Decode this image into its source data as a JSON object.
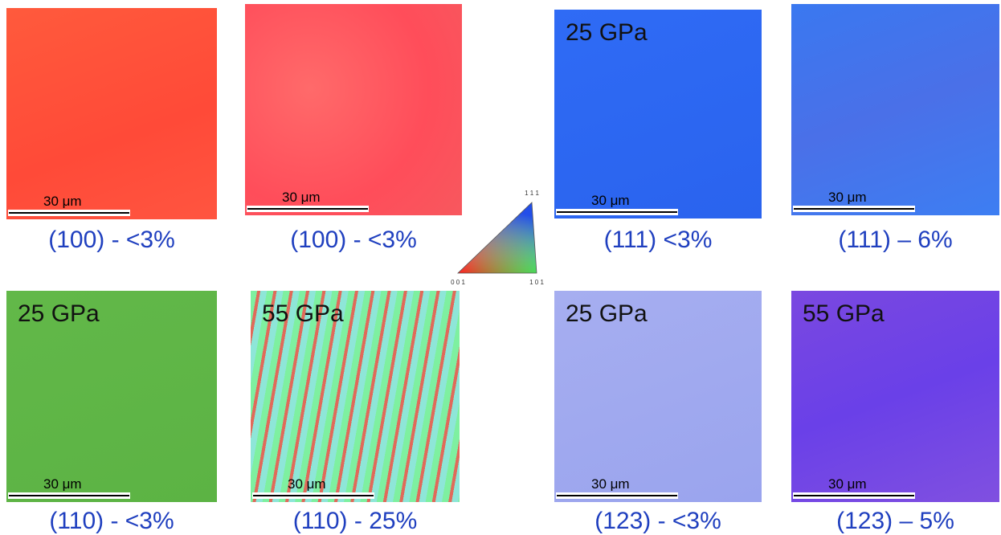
{
  "panels": [
    {
      "caption": "(100) - <3%",
      "scale": "30 μm"
    },
    {
      "caption": "(100) - <3%",
      "scale": "30 μm"
    },
    {
      "caption": "(111) <3%",
      "scale": "30 μm",
      "pressure": "25 GPa"
    },
    {
      "caption": "(111) – 6%",
      "scale": "30 μm"
    },
    {
      "caption": "(110) - <3%",
      "scale": "30 μm",
      "pressure": "25 GPa"
    },
    {
      "caption": "(110) - 25%",
      "scale": "30 μm",
      "pressure": "55 GPa"
    },
    {
      "caption": "(123) - <3%",
      "scale": "30 μm",
      "pressure": "25 GPa"
    },
    {
      "caption": "(123) – 5%",
      "scale": "30 μm",
      "pressure": "55 GPa"
    }
  ],
  "legend": {
    "top": "1 1 1",
    "left": "0 0 1",
    "right": "1 0 1"
  }
}
